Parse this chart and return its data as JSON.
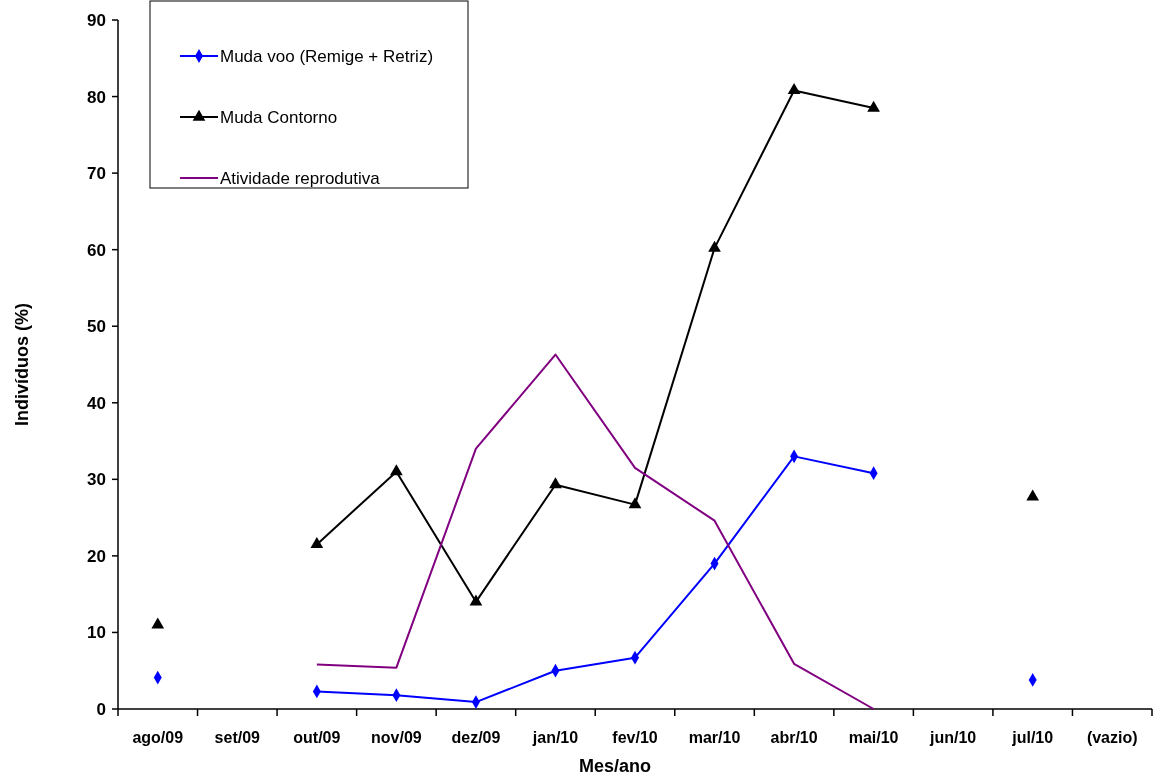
{
  "chart_data": {
    "type": "line",
    "xlabel": "Mes/ano",
    "ylabel": "Indivíduos (%)",
    "categories": [
      "ago/09",
      "set/09",
      "out/09",
      "nov/09",
      "dez/09",
      "jan/10",
      "fev/10",
      "mar/10",
      "abr/10",
      "mai/10",
      "jun/10",
      "jul/10",
      "(vazio)"
    ],
    "series": [
      {
        "name": "Muda voo (Remige + Retriz)",
        "color": "#0000ff",
        "marker": "diamond",
        "values": [
          4.1,
          null,
          2.3,
          1.8,
          0.9,
          5,
          6.7,
          19,
          33,
          30.8,
          null,
          3.8,
          null
        ]
      },
      {
        "name": "Muda Contorno",
        "color": "#000000",
        "marker": "triangle",
        "values": [
          11,
          null,
          21.5,
          31,
          14,
          29.3,
          26.7,
          60.2,
          80.8,
          78.5,
          null,
          27.7,
          null
        ]
      },
      {
        "name": "Atividade reprodutiva",
        "color": "#800080",
        "marker": "none",
        "values": [
          null,
          null,
          5.8,
          5.4,
          34,
          46.3,
          31.5,
          24.6,
          5.9,
          0,
          null,
          null,
          null
        ]
      }
    ],
    "ylim": [
      0,
      90
    ],
    "yticks": [
      0,
      10,
      20,
      30,
      40,
      50,
      60,
      70,
      80,
      90
    ],
    "grid": false,
    "legend": "top left"
  }
}
